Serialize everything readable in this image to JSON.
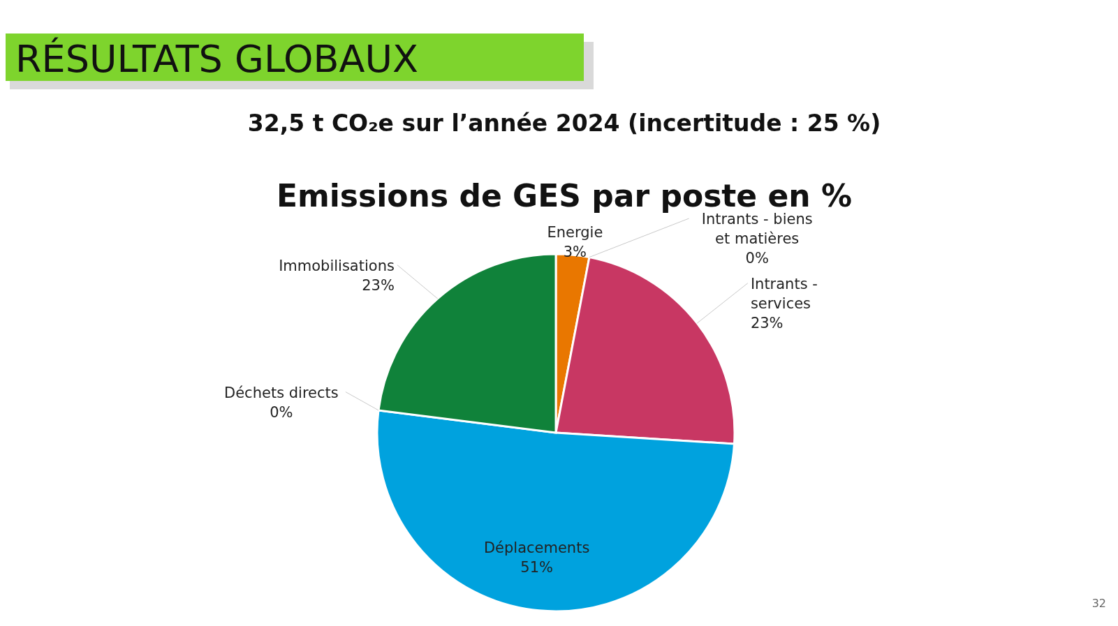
{
  "chart_data": {
    "type": "pie",
    "title": "Emissions de GES par poste en %",
    "subtitle": "32,5 t CO₂e sur l’année 2024 (incertitude : 25 %)",
    "annotations": [
      "RÉSULTATS GLOBAUX",
      "32"
    ],
    "categories": [
      "Energie",
      "Intrants - biens et matières",
      "Intrants - services",
      "Déplacements",
      "Déchets directs",
      "Immobilisations"
    ],
    "values": [
      3,
      0,
      23,
      51,
      0,
      23
    ],
    "colors": [
      "#e97700",
      null,
      "#c83763",
      "#00a2de",
      null,
      "#10823a"
    ],
    "value_labels": [
      "3%",
      "0%",
      "23%",
      "51%",
      "0%",
      "23%"
    ]
  }
}
